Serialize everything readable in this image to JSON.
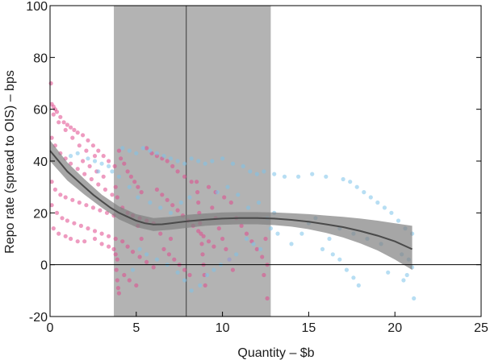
{
  "chart_data": {
    "type": "scatter",
    "title": "",
    "xlabel": "Quantity – $b",
    "ylabel": "Repo rate (spread to OIS) – bps",
    "xlim": [
      0,
      25
    ],
    "ylim": [
      -20,
      100
    ],
    "xticks": [
      "0",
      "5",
      "10",
      "15",
      "20",
      "25"
    ],
    "yticks": [
      "-20",
      "0",
      "20",
      "40",
      "60",
      "80",
      "100"
    ],
    "grid": false,
    "legend": "none",
    "colors": {
      "pink": "#e0488c",
      "blue": "#7cc2ea",
      "band": "#9a9a9a",
      "fit": "#4a4a4a",
      "fit_band": "#808080",
      "axis": "#000000"
    },
    "shaded_region": {
      "x0": 3.7,
      "x1": 12.8
    },
    "vertical_line": {
      "x": 7.9
    },
    "zero_line": {
      "y": 0
    },
    "fit_curve": [
      [
        0,
        44
      ],
      [
        0.5,
        40
      ],
      [
        1,
        36
      ],
      [
        1.5,
        33
      ],
      [
        2,
        30
      ],
      [
        2.5,
        27
      ],
      [
        3,
        24.5
      ],
      [
        3.5,
        22
      ],
      [
        4,
        20
      ],
      [
        4.5,
        18.5
      ],
      [
        5,
        17
      ],
      [
        5.5,
        16
      ],
      [
        6,
        15.5
      ],
      [
        6.5,
        15.6
      ],
      [
        7,
        16
      ],
      [
        7.5,
        16.4
      ],
      [
        8,
        16.8
      ],
      [
        9,
        17.4
      ],
      [
        10,
        17.8
      ],
      [
        11,
        18
      ],
      [
        12,
        18
      ],
      [
        13,
        17.8
      ],
      [
        14,
        17.3
      ],
      [
        15,
        16.6
      ],
      [
        16,
        15.6
      ],
      [
        17,
        14.5
      ],
      [
        18,
        13
      ],
      [
        19,
        11.2
      ],
      [
        20,
        9
      ],
      [
        21,
        6
      ]
    ],
    "fit_band_upper": [
      [
        0,
        48
      ],
      [
        1,
        39.5
      ],
      [
        2,
        33
      ],
      [
        3,
        27
      ],
      [
        4,
        22.5
      ],
      [
        5,
        19.5
      ],
      [
        6,
        18
      ],
      [
        7,
        18.5
      ],
      [
        8,
        19.3
      ],
      [
        9,
        19.8
      ],
      [
        10,
        20.2
      ],
      [
        11,
        20.3
      ],
      [
        12,
        20.3
      ],
      [
        13,
        20.2
      ],
      [
        14,
        19.9
      ],
      [
        15,
        19.5
      ],
      [
        16,
        19
      ],
      [
        17,
        18.5
      ],
      [
        18,
        17.8
      ],
      [
        19,
        17
      ],
      [
        20,
        16
      ],
      [
        21,
        15
      ]
    ],
    "fit_band_lower": [
      [
        0,
        40
      ],
      [
        1,
        32.5
      ],
      [
        2,
        27
      ],
      [
        3,
        22
      ],
      [
        4,
        17.5
      ],
      [
        5,
        14.5
      ],
      [
        6,
        13
      ],
      [
        7,
        13.5
      ],
      [
        8,
        14.3
      ],
      [
        9,
        15
      ],
      [
        10,
        15.4
      ],
      [
        11,
        15.6
      ],
      [
        12,
        15.6
      ],
      [
        13,
        15.3
      ],
      [
        14,
        14.7
      ],
      [
        15,
        13.7
      ],
      [
        16,
        12.3
      ],
      [
        17,
        10.5
      ],
      [
        18,
        8.2
      ],
      [
        19,
        5.5
      ],
      [
        20,
        2
      ],
      [
        21,
        -2
      ]
    ],
    "series": [
      {
        "color": "pink",
        "points": [
          [
            0.05,
            70
          ],
          [
            0.1,
            62
          ],
          [
            0.2,
            61
          ],
          [
            0.3,
            60
          ],
          [
            0.4,
            59
          ],
          [
            0.6,
            57
          ],
          [
            0.8,
            55
          ],
          [
            1.0,
            54
          ],
          [
            1.2,
            53
          ],
          [
            1.4,
            52
          ],
          [
            1.6,
            51
          ],
          [
            1.9,
            50
          ],
          [
            2.2,
            48
          ],
          [
            2.5,
            46
          ],
          [
            2.8,
            44
          ],
          [
            3.1,
            42
          ],
          [
            3.4,
            40
          ],
          [
            0.2,
            58
          ],
          [
            0.5,
            55
          ],
          [
            0.9,
            52
          ],
          [
            1.3,
            49
          ],
          [
            1.7,
            46
          ],
          [
            2.1,
            44
          ],
          [
            2.6,
            42
          ],
          [
            0.1,
            49
          ],
          [
            0.3,
            46
          ],
          [
            0.6,
            43
          ],
          [
            0.9,
            41
          ],
          [
            1.2,
            39
          ],
          [
            1.6,
            37
          ],
          [
            2.0,
            35
          ],
          [
            2.4,
            33
          ],
          [
            2.8,
            31
          ],
          [
            3.2,
            29
          ],
          [
            3.6,
            27
          ],
          [
            0.1,
            32
          ],
          [
            0.3,
            29
          ],
          [
            0.6,
            27
          ],
          [
            0.9,
            26
          ],
          [
            1.3,
            25
          ],
          [
            1.7,
            24
          ],
          [
            2.1,
            23
          ],
          [
            2.5,
            22
          ],
          [
            2.9,
            21
          ],
          [
            3.3,
            20
          ],
          [
            3.7,
            19
          ],
          [
            0.1,
            23
          ],
          [
            0.4,
            20
          ],
          [
            0.7,
            18
          ],
          [
            1.0,
            17
          ],
          [
            1.4,
            16
          ],
          [
            1.8,
            15
          ],
          [
            2.2,
            14
          ],
          [
            2.6,
            13
          ],
          [
            3.0,
            12
          ],
          [
            3.4,
            11
          ],
          [
            3.8,
            10
          ],
          [
            0.2,
            14
          ],
          [
            0.5,
            12
          ],
          [
            0.9,
            11
          ],
          [
            1.2,
            10
          ],
          [
            1.6,
            9
          ],
          [
            2.0,
            9
          ],
          [
            2.6,
            10
          ],
          [
            3.0,
            8
          ],
          [
            3.4,
            7
          ],
          [
            3.7,
            6
          ],
          [
            3.8,
            4
          ],
          [
            3.9,
            2
          ],
          [
            3.85,
            -2
          ],
          [
            3.9,
            -6
          ],
          [
            3.95,
            -9
          ],
          [
            4.0,
            -11
          ],
          [
            3.75,
            38
          ],
          [
            3.8,
            30
          ],
          [
            3.9,
            26
          ],
          [
            4.0,
            44
          ],
          [
            4.1,
            41
          ],
          [
            4.3,
            39
          ],
          [
            4.5,
            36
          ],
          [
            4.7,
            34
          ],
          [
            4.9,
            32
          ],
          [
            5.1,
            30
          ],
          [
            5.3,
            28
          ],
          [
            4.2,
            22
          ],
          [
            4.5,
            20
          ],
          [
            4.8,
            19
          ],
          [
            5.2,
            18
          ],
          [
            5.6,
            17
          ],
          [
            6.0,
            16
          ],
          [
            4.2,
            9
          ],
          [
            4.5,
            7
          ],
          [
            4.8,
            5
          ],
          [
            5.2,
            3
          ],
          [
            5.6,
            1
          ],
          [
            6.0,
            -1
          ],
          [
            4.3,
            -4
          ],
          [
            4.6,
            -6
          ],
          [
            5.0,
            -8
          ],
          [
            5.6,
            45
          ],
          [
            5.9,
            43
          ],
          [
            6.2,
            42
          ],
          [
            6.5,
            41
          ],
          [
            6.8,
            40
          ],
          [
            7.1,
            38
          ],
          [
            7.4,
            36
          ],
          [
            7.8,
            34
          ],
          [
            8.2,
            32
          ],
          [
            6.2,
            29
          ],
          [
            6.5,
            27
          ],
          [
            6.8,
            25
          ],
          [
            7.1,
            23
          ],
          [
            7.4,
            21
          ],
          [
            7.7,
            19
          ],
          [
            8.0,
            17
          ],
          [
            8.3,
            15
          ],
          [
            8.6,
            13
          ],
          [
            8.9,
            11
          ],
          [
            9.2,
            9
          ],
          [
            9.5,
            7
          ],
          [
            6.6,
            6
          ],
          [
            6.9,
            4
          ],
          [
            7.2,
            2
          ],
          [
            7.5,
            0
          ],
          [
            7.8,
            -2
          ],
          [
            8.1,
            -4
          ],
          [
            8.5,
            32
          ],
          [
            8.55,
            28
          ],
          [
            8.6,
            24
          ],
          [
            8.65,
            20
          ],
          [
            8.7,
            16
          ],
          [
            8.75,
            12
          ],
          [
            8.8,
            8
          ],
          [
            8.85,
            4
          ],
          [
            8.9,
            0
          ],
          [
            8.95,
            -4
          ],
          [
            9.0,
            -8
          ],
          [
            9.4,
            22
          ],
          [
            9.6,
            18
          ],
          [
            9.8,
            14
          ],
          [
            10.0,
            10
          ],
          [
            10.2,
            6
          ],
          [
            10.4,
            2
          ],
          [
            10.6,
            -2
          ],
          [
            10.8,
            18
          ],
          [
            11.1,
            15
          ],
          [
            11.4,
            12
          ],
          [
            11.7,
            9
          ],
          [
            12.0,
            6
          ],
          [
            12.3,
            3
          ],
          [
            12.6,
            0
          ],
          [
            12.6,
            -13
          ],
          [
            12.4,
            -4
          ],
          [
            12.5,
            10
          ],
          [
            5.1,
            15
          ],
          [
            5.3,
            10
          ],
          [
            6.4,
            12
          ],
          [
            7.0,
            10
          ],
          [
            9.2,
            30
          ],
          [
            9.6,
            28
          ],
          [
            10.1,
            26
          ],
          [
            10.5,
            24
          ],
          [
            1.9,
            40
          ],
          [
            2.3,
            38
          ],
          [
            2.7,
            36
          ],
          [
            3.1,
            34
          ]
        ]
      },
      {
        "color": "blue",
        "points": [
          [
            1.2,
            42
          ],
          [
            1.6,
            43
          ],
          [
            2.2,
            41
          ],
          [
            2.6,
            40
          ],
          [
            3.0,
            39
          ],
          [
            3.4,
            38
          ],
          [
            2.8,
            36
          ],
          [
            4.2,
            45
          ],
          [
            4.6,
            44
          ],
          [
            5.0,
            43
          ],
          [
            5.4,
            45
          ],
          [
            5.8,
            44
          ],
          [
            6.2,
            43
          ],
          [
            6.6,
            42
          ],
          [
            7.0,
            41
          ],
          [
            7.4,
            40
          ],
          [
            7.8,
            39
          ],
          [
            8.2,
            41
          ],
          [
            8.6,
            40
          ],
          [
            9.0,
            39
          ],
          [
            9.4,
            40
          ],
          [
            10.0,
            41
          ],
          [
            10.6,
            39
          ],
          [
            11.2,
            38
          ],
          [
            11.6,
            36
          ],
          [
            12.0,
            35
          ],
          [
            12.4,
            36
          ],
          [
            13.0,
            35
          ],
          [
            13.6,
            34
          ],
          [
            14.4,
            34
          ],
          [
            15.2,
            35
          ],
          [
            16.0,
            34
          ],
          [
            17.0,
            33
          ],
          [
            17.4,
            32
          ],
          [
            17.8,
            30
          ],
          [
            18.2,
            28
          ],
          [
            18.6,
            26
          ],
          [
            19.0,
            24
          ],
          [
            19.4,
            22
          ],
          [
            19.8,
            20
          ],
          [
            20.2,
            17
          ],
          [
            20.6,
            14
          ],
          [
            21.0,
            12
          ],
          [
            21.1,
            -13
          ],
          [
            20.8,
            2
          ],
          [
            20.4,
            4
          ],
          [
            19.2,
            8
          ],
          [
            18.4,
            10
          ],
          [
            17.6,
            12
          ],
          [
            16.8,
            14
          ],
          [
            16.2,
            10
          ],
          [
            15.8,
            6
          ],
          [
            16.4,
            4
          ],
          [
            16.8,
            2
          ],
          [
            17.2,
            -2
          ],
          [
            17.6,
            -5
          ],
          [
            17.9,
            -8
          ],
          [
            14.0,
            8
          ],
          [
            14.6,
            12
          ],
          [
            15.0,
            16
          ],
          [
            15.4,
            18
          ],
          [
            13.2,
            12
          ],
          [
            12.8,
            14
          ],
          [
            12.6,
            18
          ],
          [
            13.0,
            20
          ],
          [
            12.2,
            6
          ],
          [
            11.8,
            8
          ],
          [
            11.4,
            10
          ],
          [
            10.8,
            4
          ],
          [
            10.4,
            2
          ],
          [
            9.9,
            0
          ],
          [
            9.5,
            -2
          ],
          [
            9.1,
            -4
          ],
          [
            8.7,
            -8
          ],
          [
            8.2,
            -10
          ],
          [
            7.8,
            -6
          ],
          [
            7.4,
            -3
          ],
          [
            6.8,
            0
          ],
          [
            6.2,
            2
          ],
          [
            5.6,
            4
          ],
          [
            5.2,
            6
          ],
          [
            4.8,
            -2
          ],
          [
            4.6,
            30
          ],
          [
            5.1,
            26
          ],
          [
            5.8,
            24
          ],
          [
            6.4,
            22
          ],
          [
            7.0,
            20
          ],
          [
            7.6,
            24
          ],
          [
            8.1,
            26
          ],
          [
            9.7,
            28
          ],
          [
            10.3,
            30
          ],
          [
            10.9,
            27
          ],
          [
            11.5,
            22
          ],
          [
            12.1,
            24
          ],
          [
            3.6,
            36
          ],
          [
            4.0,
            34
          ],
          [
            21.0,
            -1
          ],
          [
            20.7,
            -4
          ],
          [
            20.5,
            -6
          ],
          [
            19.6,
            -3
          ]
        ]
      }
    ]
  }
}
